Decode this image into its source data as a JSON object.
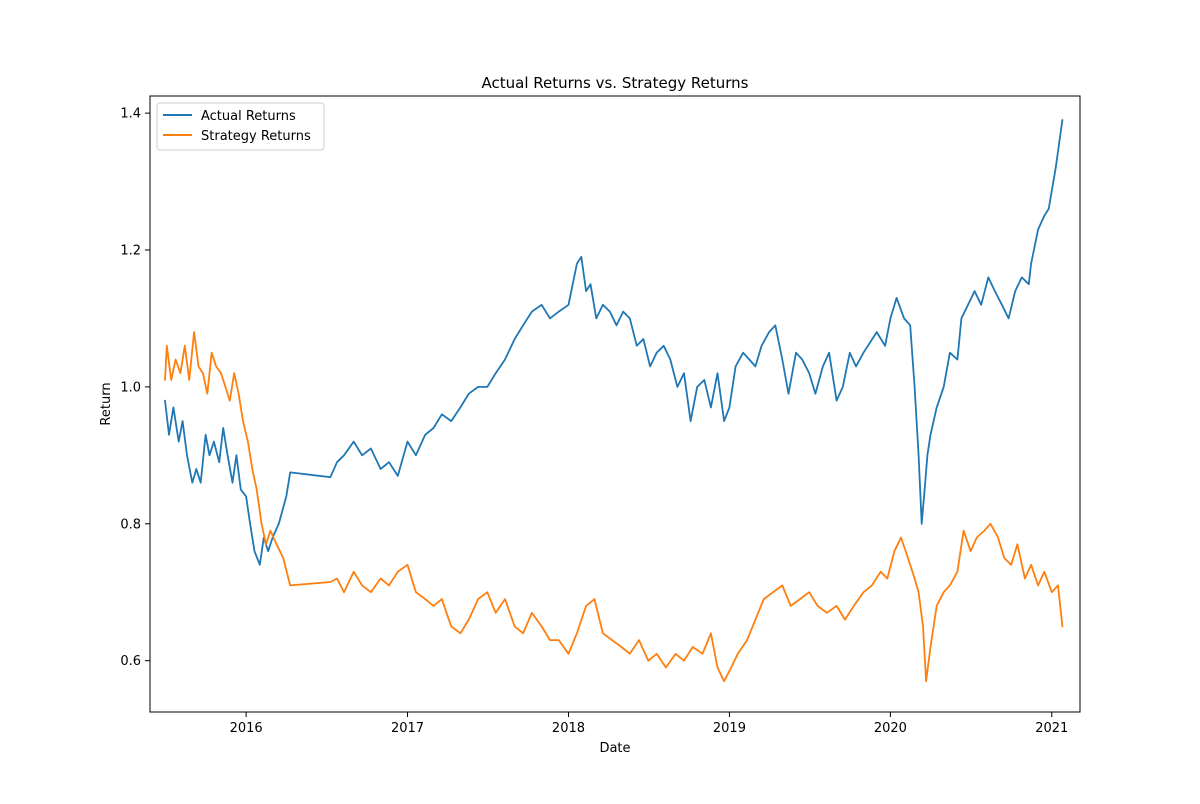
{
  "chart_data": {
    "type": "line",
    "title": "Actual Returns vs. Strategy Returns",
    "xlabel": "Date",
    "ylabel": "Return",
    "xlim": [
      "2015-05-28",
      "2021-03-06"
    ],
    "ylim": [
      0.525,
      1.425
    ],
    "x_ticks": [
      {
        "date": "2016-01-01",
        "label": "2016"
      },
      {
        "date": "2017-01-01",
        "label": "2017"
      },
      {
        "date": "2018-01-01",
        "label": "2018"
      },
      {
        "date": "2019-01-01",
        "label": "2019"
      },
      {
        "date": "2020-01-01",
        "label": "2020"
      },
      {
        "date": "2021-01-01",
        "label": "2021"
      }
    ],
    "y_ticks": [
      {
        "value": 0.6,
        "label": "0.6"
      },
      {
        "value": 0.8,
        "label": "0.8"
      },
      {
        "value": 1.0,
        "label": "1.0"
      },
      {
        "value": 1.2,
        "label": "1.2"
      },
      {
        "value": 1.4,
        "label": "1.4"
      }
    ],
    "grid": false,
    "legend": "upper-left",
    "series": [
      {
        "name": "Actual Returns",
        "color": "#1f77b4",
        "x": [
          "2015-07-01",
          "2015-07-10",
          "2015-07-20",
          "2015-08-01",
          "2015-08-10",
          "2015-08-20",
          "2015-09-01",
          "2015-09-10",
          "2015-09-20",
          "2015-10-01",
          "2015-10-10",
          "2015-10-20",
          "2015-11-01",
          "2015-11-10",
          "2015-11-20",
          "2015-12-01",
          "2015-12-10",
          "2015-12-20",
          "2016-01-01",
          "2016-01-10",
          "2016-01-20",
          "2016-02-01",
          "2016-02-10",
          "2016-02-20",
          "2016-03-01",
          "2016-03-15",
          "2016-04-01",
          "2016-04-10",
          "2016-07-10",
          "2016-07-25",
          "2016-08-10",
          "2016-09-01",
          "2016-09-20",
          "2016-10-10",
          "2016-11-01",
          "2016-11-20",
          "2016-12-10",
          "2017-01-01",
          "2017-01-20",
          "2017-02-10",
          "2017-03-01",
          "2017-03-20",
          "2017-04-10",
          "2017-05-01",
          "2017-05-20",
          "2017-06-10",
          "2017-07-01",
          "2017-07-20",
          "2017-08-10",
          "2017-09-01",
          "2017-09-20",
          "2017-10-10",
          "2017-11-01",
          "2017-11-20",
          "2017-12-10",
          "2018-01-01",
          "2018-01-20",
          "2018-01-30",
          "2018-02-10",
          "2018-02-20",
          "2018-03-05",
          "2018-03-20",
          "2018-04-05",
          "2018-04-20",
          "2018-05-05",
          "2018-05-20",
          "2018-06-05",
          "2018-06-20",
          "2018-07-05",
          "2018-07-20",
          "2018-08-05",
          "2018-08-20",
          "2018-09-05",
          "2018-09-20",
          "2018-10-05",
          "2018-10-20",
          "2018-11-05",
          "2018-11-20",
          "2018-12-05",
          "2018-12-20",
          "2019-01-01",
          "2019-01-15",
          "2019-02-01",
          "2019-02-15",
          "2019-03-01",
          "2019-03-15",
          "2019-04-01",
          "2019-04-15",
          "2019-05-01",
          "2019-05-15",
          "2019-06-01",
          "2019-06-15",
          "2019-07-01",
          "2019-07-15",
          "2019-08-01",
          "2019-08-15",
          "2019-09-01",
          "2019-09-15",
          "2019-10-01",
          "2019-10-15",
          "2019-11-01",
          "2019-12-01",
          "2019-12-20",
          "2020-01-01",
          "2020-01-15",
          "2020-02-01",
          "2020-02-15",
          "2020-02-25",
          "2020-03-05",
          "2020-03-12",
          "2020-03-20",
          "2020-03-25",
          "2020-04-01",
          "2020-04-15",
          "2020-05-01",
          "2020-05-15",
          "2020-06-01",
          "2020-06-10",
          "2020-06-25",
          "2020-07-10",
          "2020-07-25",
          "2020-08-10",
          "2020-08-25",
          "2020-09-10",
          "2020-09-25",
          "2020-10-10",
          "2020-10-25",
          "2020-11-10",
          "2020-11-15",
          "2020-12-01",
          "2020-12-15",
          "2020-12-25",
          "2021-01-10",
          "2021-01-25"
        ],
        "y": [
          0.98,
          0.93,
          0.97,
          0.92,
          0.95,
          0.9,
          0.86,
          0.88,
          0.86,
          0.93,
          0.9,
          0.92,
          0.89,
          0.94,
          0.9,
          0.86,
          0.9,
          0.85,
          0.84,
          0.8,
          0.76,
          0.74,
          0.78,
          0.76,
          0.78,
          0.8,
          0.84,
          0.875,
          0.868,
          0.89,
          0.9,
          0.92,
          0.9,
          0.91,
          0.88,
          0.89,
          0.87,
          0.92,
          0.9,
          0.93,
          0.94,
          0.96,
          0.95,
          0.97,
          0.99,
          1.0,
          1.0,
          1.02,
          1.04,
          1.07,
          1.09,
          1.11,
          1.12,
          1.1,
          1.11,
          1.12,
          1.18,
          1.19,
          1.14,
          1.15,
          1.1,
          1.12,
          1.11,
          1.09,
          1.11,
          1.1,
          1.06,
          1.07,
          1.03,
          1.05,
          1.06,
          1.04,
          1.0,
          1.02,
          0.95,
          1.0,
          1.01,
          0.97,
          1.02,
          0.95,
          0.97,
          1.03,
          1.05,
          1.04,
          1.03,
          1.06,
          1.08,
          1.09,
          1.04,
          0.99,
          1.05,
          1.04,
          1.02,
          0.99,
          1.03,
          1.05,
          0.98,
          1.0,
          1.05,
          1.03,
          1.05,
          1.08,
          1.06,
          1.1,
          1.13,
          1.1,
          1.09,
          1.0,
          0.9,
          0.8,
          0.86,
          0.9,
          0.93,
          0.97,
          1.0,
          1.05,
          1.04,
          1.1,
          1.12,
          1.14,
          1.12,
          1.16,
          1.14,
          1.12,
          1.1,
          1.14,
          1.16,
          1.15,
          1.18,
          1.23,
          1.25,
          1.26,
          1.32,
          1.39
        ]
      },
      {
        "name": "Strategy Returns",
        "color": "#ff7f0e",
        "x": [
          "2015-07-01",
          "2015-07-05",
          "2015-07-15",
          "2015-07-25",
          "2015-08-05",
          "2015-08-15",
          "2015-08-25",
          "2015-09-05",
          "2015-09-15",
          "2015-09-25",
          "2015-10-05",
          "2015-10-15",
          "2015-10-25",
          "2015-11-05",
          "2015-11-15",
          "2015-11-25",
          "2015-12-05",
          "2015-12-15",
          "2015-12-25",
          "2016-01-05",
          "2016-01-15",
          "2016-01-25",
          "2016-02-05",
          "2016-02-15",
          "2016-02-25",
          "2016-03-10",
          "2016-03-25",
          "2016-04-10",
          "2016-07-10",
          "2016-07-25",
          "2016-08-10",
          "2016-09-01",
          "2016-09-20",
          "2016-10-10",
          "2016-11-01",
          "2016-11-20",
          "2016-12-10",
          "2017-01-01",
          "2017-01-20",
          "2017-02-10",
          "2017-03-01",
          "2017-03-20",
          "2017-04-10",
          "2017-05-01",
          "2017-05-20",
          "2017-06-10",
          "2017-07-01",
          "2017-07-20",
          "2017-08-10",
          "2017-09-01",
          "2017-09-20",
          "2017-10-10",
          "2017-11-01",
          "2017-11-20",
          "2017-12-10",
          "2018-01-01",
          "2018-01-20",
          "2018-02-10",
          "2018-03-01",
          "2018-03-20",
          "2018-04-10",
          "2018-05-01",
          "2018-05-20",
          "2018-06-10",
          "2018-07-01",
          "2018-07-20",
          "2018-08-10",
          "2018-09-01",
          "2018-09-20",
          "2018-10-10",
          "2018-11-01",
          "2018-11-20",
          "2018-12-05",
          "2018-12-20",
          "2019-01-05",
          "2019-01-20",
          "2019-02-10",
          "2019-03-01",
          "2019-03-20",
          "2019-04-10",
          "2019-05-01",
          "2019-05-20",
          "2019-06-10",
          "2019-07-01",
          "2019-07-20",
          "2019-08-10",
          "2019-09-01",
          "2019-09-20",
          "2019-10-10",
          "2019-11-01",
          "2019-11-20",
          "2019-12-10",
          "2019-12-25",
          "2020-01-10",
          "2020-01-25",
          "2020-02-10",
          "2020-02-25",
          "2020-03-05",
          "2020-03-15",
          "2020-03-22",
          "2020-04-01",
          "2020-04-15",
          "2020-05-01",
          "2020-05-15",
          "2020-06-01",
          "2020-06-15",
          "2020-07-01",
          "2020-07-15",
          "2020-08-01",
          "2020-08-15",
          "2020-09-01",
          "2020-09-15",
          "2020-10-01",
          "2020-10-15",
          "2020-11-01",
          "2020-11-15",
          "2020-12-01",
          "2020-12-15",
          "2021-01-01",
          "2021-01-15",
          "2021-01-25"
        ],
        "y": [
          1.01,
          1.06,
          1.01,
          1.04,
          1.02,
          1.06,
          1.01,
          1.08,
          1.03,
          1.02,
          0.99,
          1.05,
          1.03,
          1.02,
          1.0,
          0.98,
          1.02,
          0.99,
          0.95,
          0.92,
          0.88,
          0.85,
          0.8,
          0.77,
          0.79,
          0.77,
          0.75,
          0.71,
          0.715,
          0.72,
          0.7,
          0.73,
          0.71,
          0.7,
          0.72,
          0.71,
          0.73,
          0.74,
          0.7,
          0.69,
          0.68,
          0.69,
          0.65,
          0.64,
          0.66,
          0.69,
          0.7,
          0.67,
          0.69,
          0.65,
          0.64,
          0.67,
          0.65,
          0.63,
          0.63,
          0.61,
          0.64,
          0.68,
          0.69,
          0.64,
          0.63,
          0.62,
          0.61,
          0.63,
          0.6,
          0.61,
          0.59,
          0.61,
          0.6,
          0.62,
          0.61,
          0.64,
          0.59,
          0.57,
          0.59,
          0.61,
          0.63,
          0.66,
          0.69,
          0.7,
          0.71,
          0.68,
          0.69,
          0.7,
          0.68,
          0.67,
          0.68,
          0.66,
          0.68,
          0.7,
          0.71,
          0.73,
          0.72,
          0.76,
          0.78,
          0.75,
          0.72,
          0.7,
          0.65,
          0.57,
          0.62,
          0.68,
          0.7,
          0.71,
          0.73,
          0.79,
          0.76,
          0.78,
          0.79,
          0.8,
          0.78,
          0.75,
          0.74,
          0.77,
          0.72,
          0.74,
          0.71,
          0.73,
          0.7,
          0.71,
          0.65
        ]
      }
    ]
  }
}
